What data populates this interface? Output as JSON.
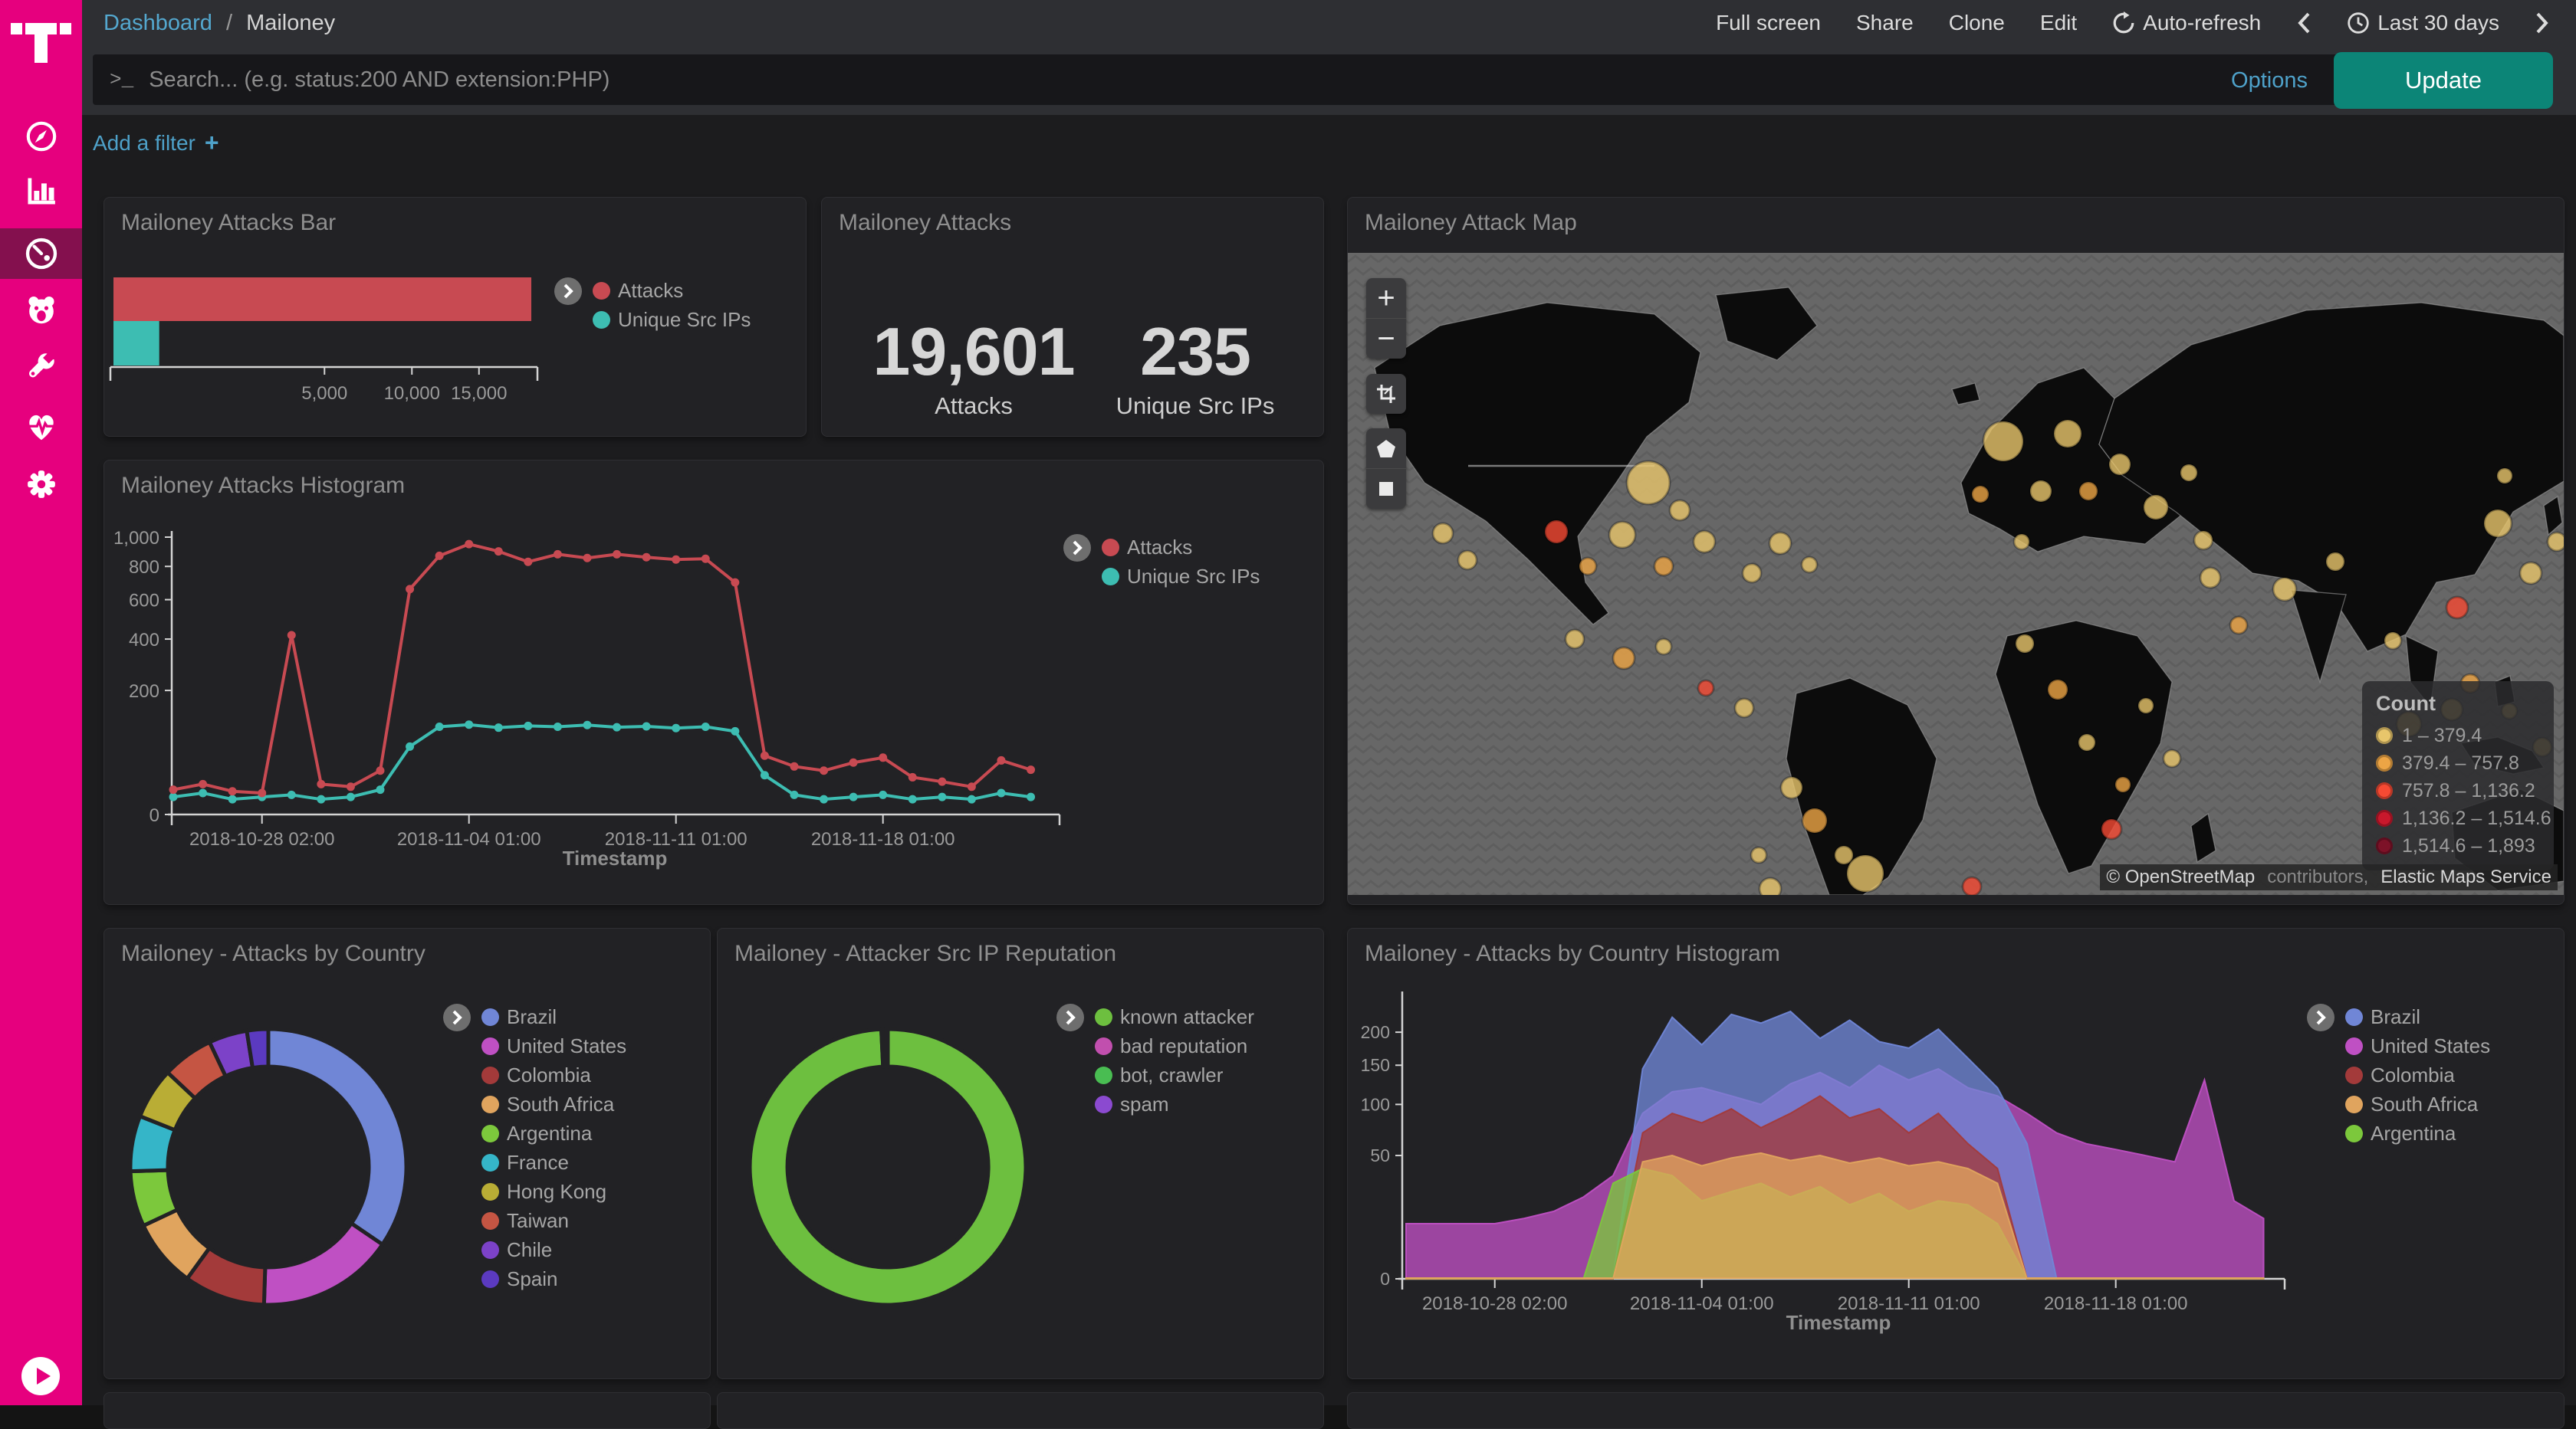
{
  "sidebar": {
    "logo": "telekom-t",
    "items": [
      "discover",
      "visualize",
      "dashboards",
      "tpot-honeypot",
      "tools",
      "health",
      "settings"
    ],
    "active_item": "dashboards",
    "accent_color": "#e6007e"
  },
  "navbar": {
    "breadcrumb": {
      "link": "Dashboard",
      "separator": "/",
      "current": "Mailoney"
    },
    "actions": [
      "Full screen",
      "Share",
      "Clone",
      "Edit"
    ],
    "auto_refresh": "Auto-refresh",
    "time_range": "Last 30 days"
  },
  "query": {
    "prompt": ">_",
    "placeholder": "Search... (e.g. status:200 AND extension:PHP)",
    "options": "Options",
    "update": "Update",
    "add_filter": "Add a filter",
    "add_filter_icon": "+"
  },
  "chart_data": [
    {
      "type": "bar",
      "title": "Mailoney Attacks Bar",
      "orientation": "horizontal",
      "x_scale": "sqrt",
      "xlim": [
        0,
        19601
      ],
      "x_ticks": {
        "values": [
          5000,
          10000,
          15000
        ],
        "labels": [
          "5,000",
          "10,000",
          "15,000"
        ]
      },
      "series": [
        {
          "name": "Attacks",
          "value": 19601,
          "color": "#c84a52"
        },
        {
          "name": "Unique Src IPs",
          "value": 235,
          "color": "#3dbdb2"
        }
      ]
    },
    {
      "type": "metric",
      "title": "Mailoney Attacks",
      "items": [
        {
          "label": "Attacks",
          "value": "19,601"
        },
        {
          "label": "Unique Src IPs",
          "value": "235"
        }
      ]
    },
    {
      "type": "map",
      "title": "Mailoney Attack Map",
      "legend": {
        "title": "Count",
        "ranges": [
          {
            "label": "1 – 379.4",
            "color": "#e8c66b"
          },
          {
            "label": "379.4 – 757.8",
            "color": "#eda545"
          },
          {
            "label": "757.8 – 1,136.2",
            "color": "#f64a33"
          },
          {
            "label": "1,136.2 – 1,514.6",
            "color": "#c9182c"
          },
          {
            "label": "1,514.6 – 1,893",
            "color": "#7d1228"
          }
        ]
      },
      "attribution": [
        {
          "text": "© OpenStreetMap",
          "muted": false
        },
        {
          "text": "contributors,",
          "muted": true
        },
        {
          "text": "Elastic Maps Service",
          "muted": false
        }
      ],
      "controls": [
        "zoom-in",
        "zoom-out",
        "crop",
        "polygon",
        "rectangle"
      ],
      "points": [
        [
          124,
          366,
          13,
          0
        ],
        [
          156,
          401,
          12,
          0
        ],
        [
          272,
          364,
          15,
          2
        ],
        [
          313,
          409,
          11,
          1
        ],
        [
          392,
          300,
          28,
          0
        ],
        [
          433,
          336,
          13,
          0
        ],
        [
          358,
          368,
          17,
          0
        ],
        [
          412,
          409,
          12,
          1
        ],
        [
          465,
          377,
          14,
          0
        ],
        [
          527,
          418,
          12,
          0
        ],
        [
          564,
          379,
          14,
          0
        ],
        [
          602,
          407,
          10,
          0
        ],
        [
          296,
          504,
          12,
          0
        ],
        [
          360,
          529,
          14,
          1
        ],
        [
          412,
          514,
          10,
          0
        ],
        [
          467,
          568,
          10,
          2
        ],
        [
          517,
          594,
          12,
          0
        ],
        [
          536,
          786,
          10,
          0
        ],
        [
          579,
          698,
          14,
          0
        ],
        [
          609,
          741,
          16,
          1
        ],
        [
          647,
          786,
          12,
          0
        ],
        [
          675,
          810,
          24,
          0
        ],
        [
          551,
          830,
          14,
          0
        ],
        [
          814,
          827,
          12,
          2
        ],
        [
          825,
          315,
          11,
          1
        ],
        [
          855,
          246,
          26,
          0
        ],
        [
          904,
          311,
          14,
          0
        ],
        [
          939,
          236,
          18,
          0
        ],
        [
          966,
          311,
          12,
          1
        ],
        [
          1007,
          276,
          14,
          0
        ],
        [
          1054,
          332,
          16,
          0
        ],
        [
          1097,
          287,
          11,
          0
        ],
        [
          1116,
          375,
          12,
          0
        ],
        [
          879,
          377,
          10,
          0
        ],
        [
          883,
          510,
          12,
          0
        ],
        [
          926,
          570,
          13,
          1
        ],
        [
          964,
          639,
          11,
          0
        ],
        [
          1011,
          694,
          10,
          1
        ],
        [
          1041,
          591,
          10,
          0
        ],
        [
          1075,
          660,
          11,
          0
        ],
        [
          996,
          752,
          13,
          2
        ],
        [
          1125,
          424,
          13,
          0
        ],
        [
          1162,
          486,
          11,
          1
        ],
        [
          1222,
          439,
          15,
          0
        ],
        [
          1288,
          403,
          12,
          0
        ],
        [
          1363,
          506,
          11,
          0
        ],
        [
          1447,
          463,
          14,
          2
        ],
        [
          1500,
          353,
          18,
          0
        ],
        [
          1543,
          418,
          14,
          0
        ],
        [
          1464,
          562,
          12,
          1
        ],
        [
          1515,
          598,
          10,
          0
        ],
        [
          1558,
          645,
          12,
          0
        ],
        [
          1384,
          615,
          16,
          0
        ],
        [
          1440,
          596,
          14,
          0
        ],
        [
          1509,
          291,
          10,
          0
        ],
        [
          1577,
          377,
          12,
          0
        ]
      ]
    },
    {
      "type": "line",
      "title": "Mailoney Attacks Histogram",
      "y_scale": "sqrt",
      "ylim": [
        0,
        1000
      ],
      "x_label": "Timestamp",
      "y_ticks": {
        "values": [
          0,
          200,
          400,
          600,
          800,
          1000
        ],
        "labels": [
          "0",
          "200",
          "400",
          "600",
          "800",
          "1,000"
        ]
      },
      "dates": [
        "2018-10-25",
        "2018-10-26",
        "2018-10-27",
        "2018-10-28",
        "2018-10-29",
        "2018-10-30",
        "2018-10-31",
        "2018-11-01",
        "2018-11-02",
        "2018-11-03",
        "2018-11-04",
        "2018-11-05",
        "2018-11-06",
        "2018-11-07",
        "2018-11-08",
        "2018-11-09",
        "2018-11-10",
        "2018-11-11",
        "2018-11-12",
        "2018-11-13",
        "2018-11-14",
        "2018-11-15",
        "2018-11-16",
        "2018-11-17",
        "2018-11-18",
        "2018-11-19",
        "2018-11-20",
        "2018-11-21",
        "2018-11-22",
        "2018-11-23"
      ],
      "x_ticks": {
        "day_indices": [
          3,
          10,
          17,
          24
        ],
        "labels": [
          "2018-10-28 02:00",
          "2018-11-04 01:00",
          "2018-11-11 01:00",
          "2018-11-18 01:00"
        ]
      },
      "series": [
        {
          "name": "Attacks",
          "color": "#c84a52",
          "values": [
            8,
            12,
            7,
            6,
            418,
            12,
            10,
            25,
            660,
            870,
            950,
            900,
            830,
            880,
            855,
            880,
            860,
            845,
            850,
            700,
            45,
            30,
            25,
            35,
            42,
            18,
            14,
            10,
            38,
            26
          ]
        },
        {
          "name": "Unique Src IPs",
          "color": "#3dbdb2",
          "values": [
            4,
            6,
            3,
            4,
            5,
            3,
            4,
            8,
            60,
            100,
            105,
            98,
            102,
            100,
            104,
            99,
            101,
            97,
            100,
            90,
            20,
            5,
            3,
            4,
            5,
            3,
            4,
            3,
            6,
            4
          ]
        }
      ]
    },
    {
      "type": "pie",
      "title": "Mailoney - Attacks by Country",
      "donut": true,
      "slices": [
        {
          "label": "Brazil",
          "percent": 34.5,
          "color": "#7086d6"
        },
        {
          "label": "United States",
          "percent": 16.0,
          "color": "#bf50c3"
        },
        {
          "label": "Colombia",
          "percent": 9.5,
          "color": "#a33a3a"
        },
        {
          "label": "South Africa",
          "percent": 8.0,
          "color": "#e0a45e"
        },
        {
          "label": "Argentina",
          "percent": 6.5,
          "color": "#7cc83c"
        },
        {
          "label": "France",
          "percent": 6.5,
          "color": "#35b5c8"
        },
        {
          "label": "Hong Kong",
          "percent": 6.0,
          "color": "#b9ad35"
        },
        {
          "label": "Taiwan",
          "percent": 6.0,
          "color": "#c55543"
        },
        {
          "label": "Chile",
          "percent": 4.5,
          "color": "#7c42c8"
        },
        {
          "label": "Spain",
          "percent": 2.5,
          "color": "#5b3ac0"
        }
      ]
    },
    {
      "type": "pie",
      "title": "Mailoney - Attacker Src IP Reputation",
      "donut": true,
      "slices": [
        {
          "label": "known attacker",
          "percent": 99.25,
          "color": "#6dbf3f"
        },
        {
          "label": "bad reputation",
          "percent": 0.4,
          "color": "#c14fae"
        },
        {
          "label": "bot, crawler",
          "percent": 0.2,
          "color": "#49bd52"
        },
        {
          "label": "spam",
          "percent": 0.15,
          "color": "#8b4ad0"
        }
      ]
    },
    {
      "type": "area",
      "title": "Mailoney - Attacks by Country Histogram",
      "mode": "overlap",
      "fill_opacity": 0.78,
      "y_scale": "sqrt",
      "ylim": [
        0,
        260
      ],
      "x_label": "Timestamp",
      "y_ticks": {
        "values": [
          0,
          50,
          100,
          150,
          200
        ],
        "labels": [
          "0",
          "50",
          "100",
          "150",
          "200"
        ]
      },
      "x_ticks": {
        "day_indices": [
          3,
          10,
          17,
          24
        ],
        "labels": [
          "2018-10-28 02:00",
          "2018-11-04 01:00",
          "2018-11-11 01:00",
          "2018-11-18 01:00"
        ]
      },
      "series": [
        {
          "name": "United States",
          "color": "#bf50c3",
          "values": [
            10,
            10,
            10,
            10,
            12,
            15,
            22,
            35,
            90,
            115,
            120,
            110,
            100,
            125,
            140,
            120,
            150,
            130,
            145,
            120,
            110,
            90,
            70,
            60,
            55,
            50,
            45,
            130,
            20,
            12
          ]
        },
        {
          "name": "Brazil",
          "color": "#7086d6",
          "values": [
            0,
            0,
            0,
            0,
            0,
            0,
            0,
            0,
            145,
            225,
            180,
            230,
            215,
            235,
            190,
            220,
            185,
            175,
            205,
            160,
            120,
            60,
            0,
            0,
            0,
            0,
            0,
            0,
            0,
            0
          ]
        },
        {
          "name": "Colombia",
          "color": "#a33a3a",
          "values": [
            0,
            0,
            0,
            0,
            0,
            0,
            0,
            0,
            70,
            90,
            80,
            95,
            75,
            90,
            110,
            85,
            95,
            70,
            90,
            60,
            40,
            0,
            0,
            0,
            0,
            0,
            0,
            0,
            0,
            0
          ]
        },
        {
          "name": "Argentina",
          "color": "#7cc83c",
          "values": [
            0,
            0,
            0,
            0,
            0,
            0,
            0,
            30,
            40,
            35,
            20,
            25,
            30,
            22,
            28,
            18,
            24,
            15,
            20,
            18,
            10,
            0,
            0,
            0,
            0,
            0,
            0,
            0,
            0,
            0
          ]
        },
        {
          "name": "South Africa",
          "color": "#e0a45e",
          "values": [
            0,
            0,
            0,
            0,
            0,
            0,
            0,
            0,
            45,
            50,
            42,
            48,
            52,
            46,
            50,
            44,
            48,
            42,
            45,
            40,
            30,
            0,
            0,
            0,
            0,
            0,
            0,
            0,
            0,
            0
          ]
        }
      ],
      "legend_order": [
        "Brazil",
        "United States",
        "Colombia",
        "South Africa",
        "Argentina"
      ]
    }
  ]
}
